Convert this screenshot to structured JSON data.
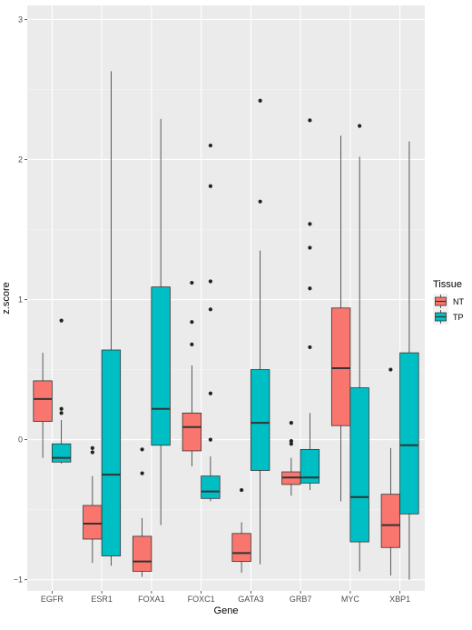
{
  "chart_data": {
    "type": "boxplot",
    "xlabel": "Gene",
    "ylabel": "z.score",
    "ylim": [
      -1.08,
      3.1
    ],
    "yticks": [
      -1,
      0,
      1,
      2,
      3
    ],
    "grid": true,
    "legend": {
      "title": "Tissue",
      "position": "right"
    },
    "categories": [
      "EGFR",
      "ESR1",
      "FOXA1",
      "FOXC1",
      "GATA3",
      "GRB7",
      "MYC",
      "XBP1"
    ],
    "series": [
      {
        "name": "NT",
        "color": "#F8766D",
        "boxes": [
          {
            "category": "EGFR",
            "whisker_low": -0.13,
            "q1": 0.13,
            "median": 0.29,
            "q3": 0.42,
            "whisker_high": 0.62,
            "outliers": []
          },
          {
            "category": "ESR1",
            "whisker_low": -0.88,
            "q1": -0.71,
            "median": -0.6,
            "q3": -0.47,
            "whisker_high": -0.26,
            "outliers": [
              -0.06,
              -0.09
            ]
          },
          {
            "category": "FOXA1",
            "whisker_low": -0.98,
            "q1": -0.94,
            "median": -0.87,
            "q3": -0.69,
            "whisker_high": -0.56,
            "outliers": [
              -0.07,
              -0.24
            ]
          },
          {
            "category": "FOXC1",
            "whisker_low": -0.19,
            "q1": -0.08,
            "median": 0.09,
            "q3": 0.19,
            "whisker_high": 0.53,
            "outliers": [
              1.12,
              0.84,
              0.68
            ]
          },
          {
            "category": "GATA3",
            "whisker_low": -0.95,
            "q1": -0.87,
            "median": -0.81,
            "q3": -0.67,
            "whisker_high": -0.59,
            "outliers": [
              -0.36
            ]
          },
          {
            "category": "GRB7",
            "whisker_low": -0.4,
            "q1": -0.32,
            "median": -0.27,
            "q3": -0.23,
            "whisker_high": -0.13,
            "outliers": [
              0.12,
              -0.01,
              -0.03
            ]
          },
          {
            "category": "MYC",
            "whisker_low": -0.44,
            "q1": 0.1,
            "median": 0.51,
            "q3": 0.94,
            "whisker_high": 2.17,
            "outliers": []
          },
          {
            "category": "XBP1",
            "whisker_low": -0.97,
            "q1": -0.77,
            "median": -0.61,
            "q3": -0.39,
            "whisker_high": -0.06,
            "outliers": [
              0.5
            ]
          }
        ]
      },
      {
        "name": "TP",
        "color": "#00BFC4",
        "boxes": [
          {
            "category": "EGFR",
            "whisker_low": -0.17,
            "q1": -0.16,
            "median": -0.13,
            "q3": -0.03,
            "whisker_high": 0.14,
            "outliers": [
              0.85,
              0.22,
              0.19
            ]
          },
          {
            "category": "ESR1",
            "whisker_low": -0.9,
            "q1": -0.83,
            "median": -0.25,
            "q3": 0.64,
            "whisker_high": 2.63,
            "outliers": []
          },
          {
            "category": "FOXA1",
            "whisker_low": -0.61,
            "q1": -0.04,
            "median": 0.22,
            "q3": 1.09,
            "whisker_high": 2.29,
            "outliers": []
          },
          {
            "category": "FOXC1",
            "whisker_low": -0.44,
            "q1": -0.42,
            "median": -0.37,
            "q3": -0.26,
            "whisker_high": -0.12,
            "outliers": [
              2.1,
              1.81,
              1.13,
              0.93,
              0.33,
              0.0
            ]
          },
          {
            "category": "GATA3",
            "whisker_low": -0.89,
            "q1": -0.22,
            "median": 0.12,
            "q3": 0.5,
            "whisker_high": 1.35,
            "outliers": [
              2.42,
              1.7
            ]
          },
          {
            "category": "GRB7",
            "whisker_low": -0.36,
            "q1": -0.31,
            "median": -0.27,
            "q3": -0.07,
            "whisker_high": 0.19,
            "outliers": [
              2.28,
              1.54,
              1.37,
              1.08,
              0.66
            ]
          },
          {
            "category": "MYC",
            "whisker_low": -0.94,
            "q1": -0.73,
            "median": -0.41,
            "q3": 0.37,
            "whisker_high": 2.02,
            "outliers": [
              2.24
            ]
          },
          {
            "category": "XBP1",
            "whisker_low": -1.0,
            "q1": -0.53,
            "median": -0.04,
            "q3": 0.62,
            "whisker_high": 2.13,
            "outliers": []
          }
        ]
      }
    ]
  }
}
